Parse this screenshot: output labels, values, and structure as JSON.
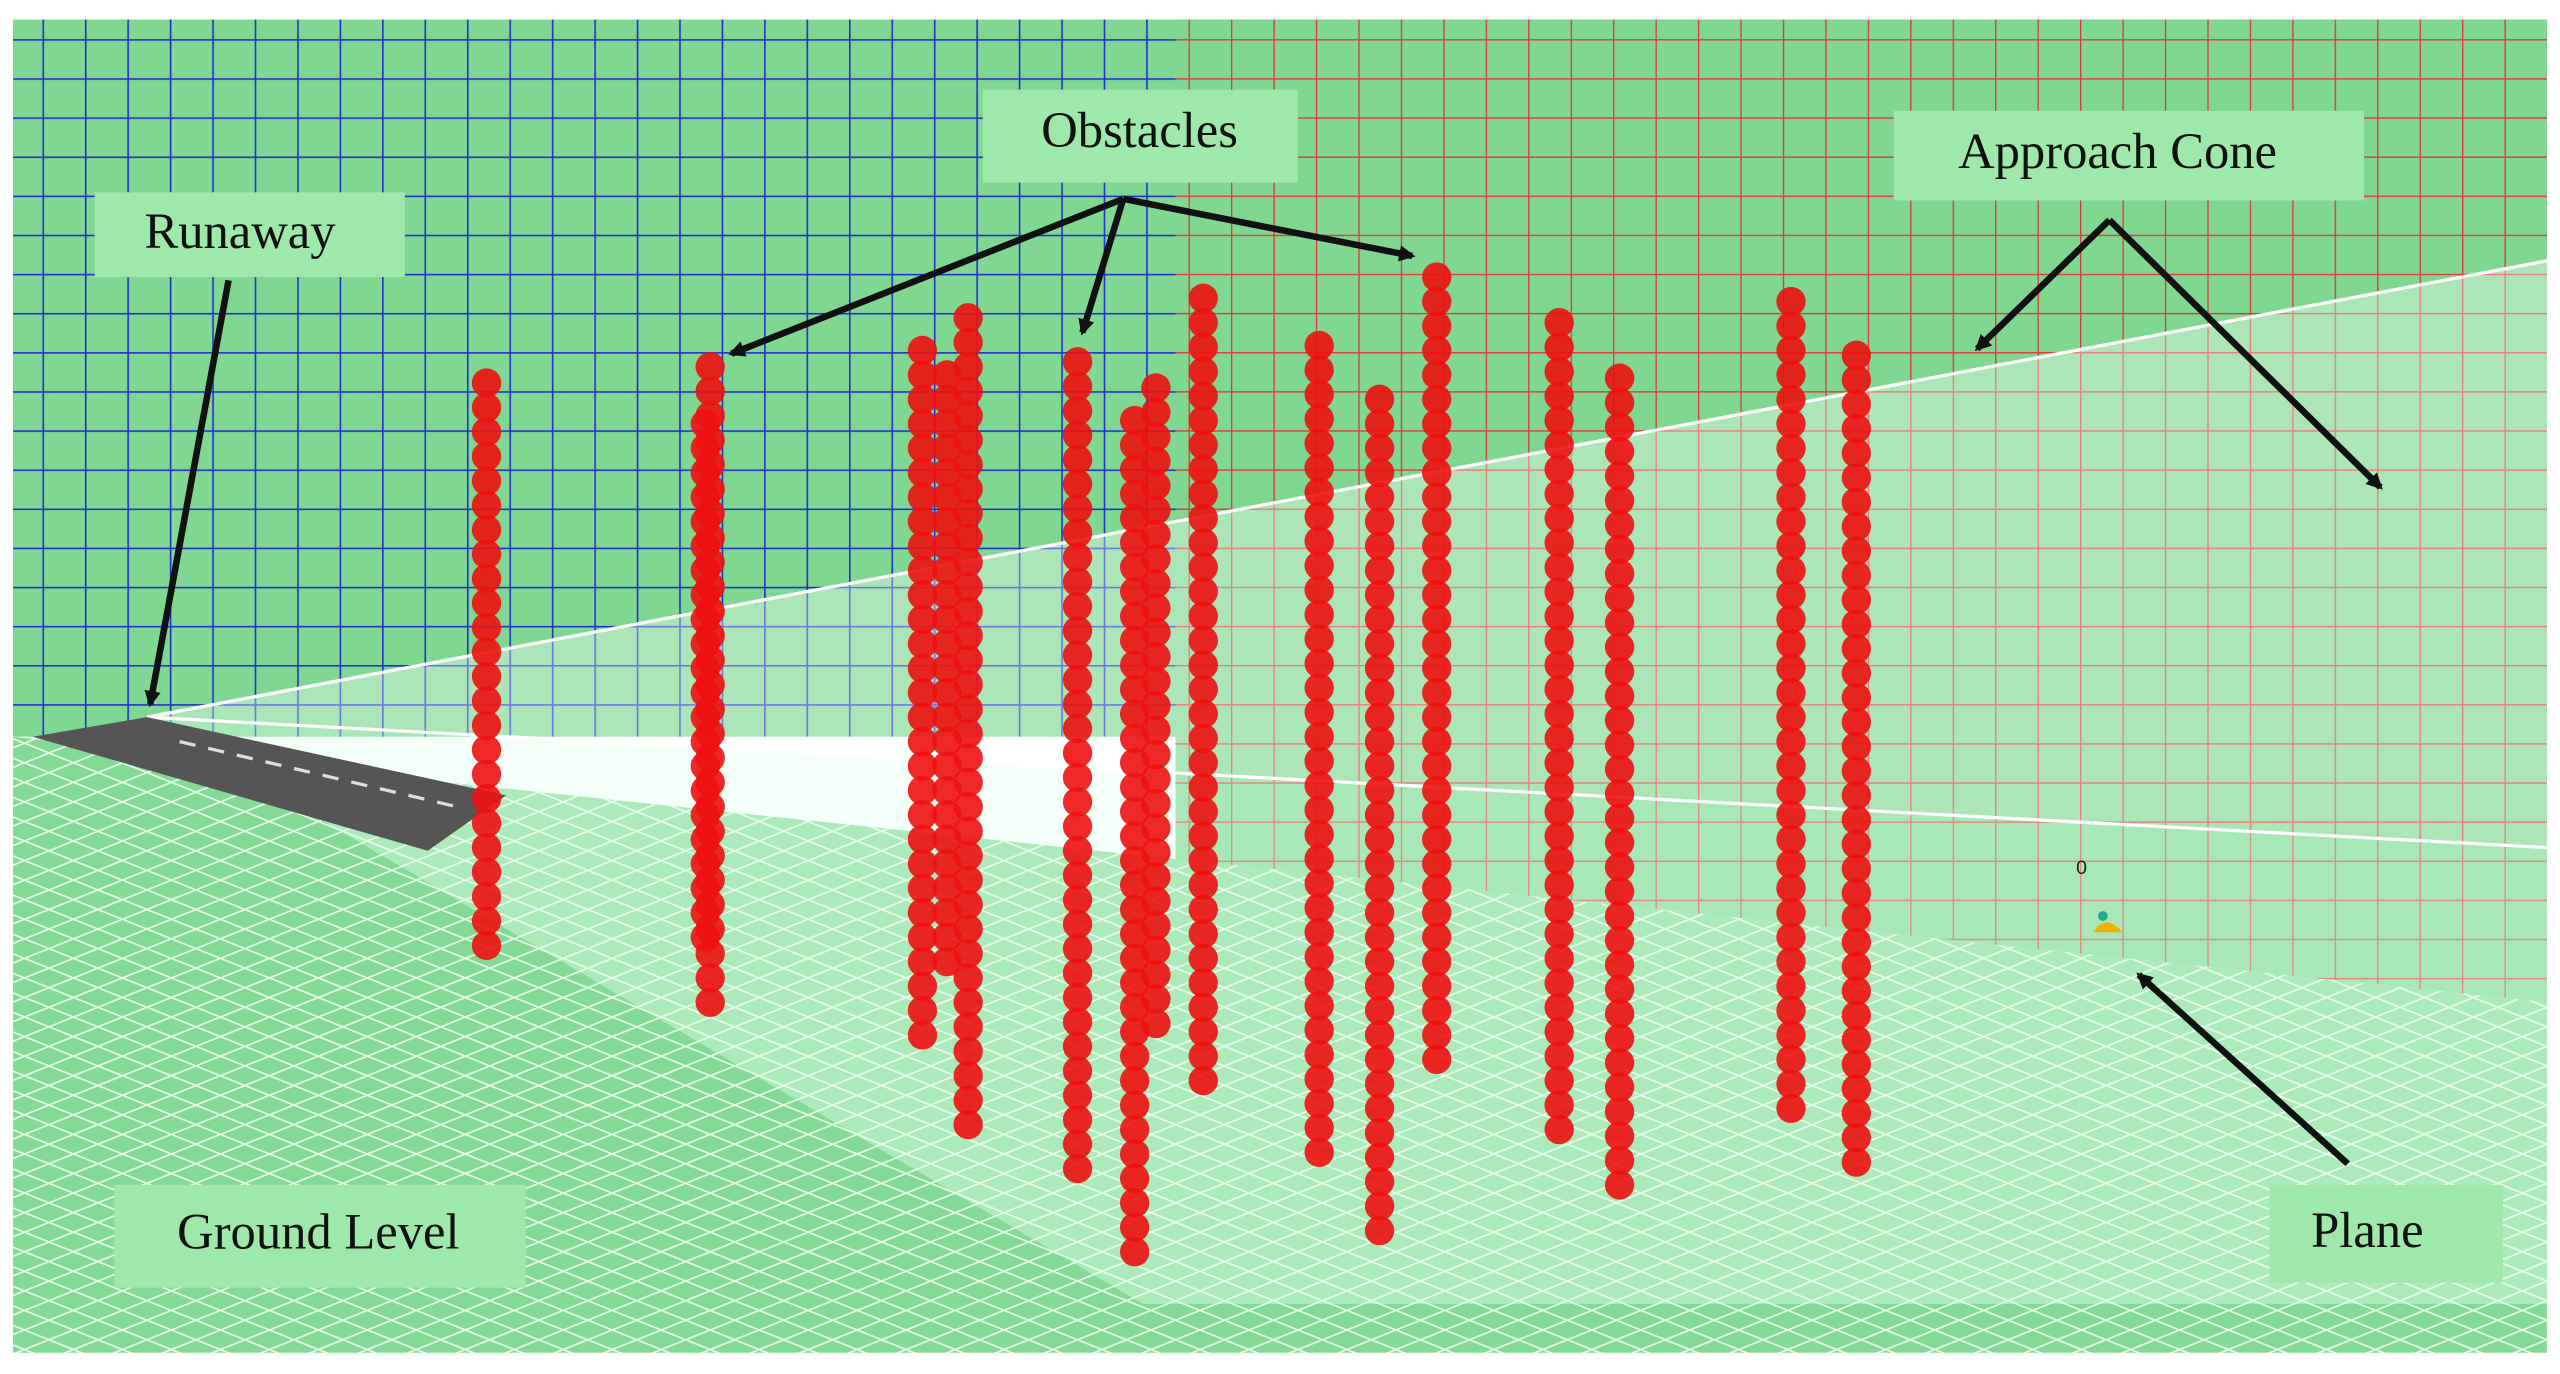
{
  "labels": {
    "obstacles": "Obstacles",
    "approach_cone": "Approach Cone",
    "runway": "Runaway",
    "ground_level": "Ground Level",
    "plane": "Plane",
    "plane_id": "0"
  }
}
